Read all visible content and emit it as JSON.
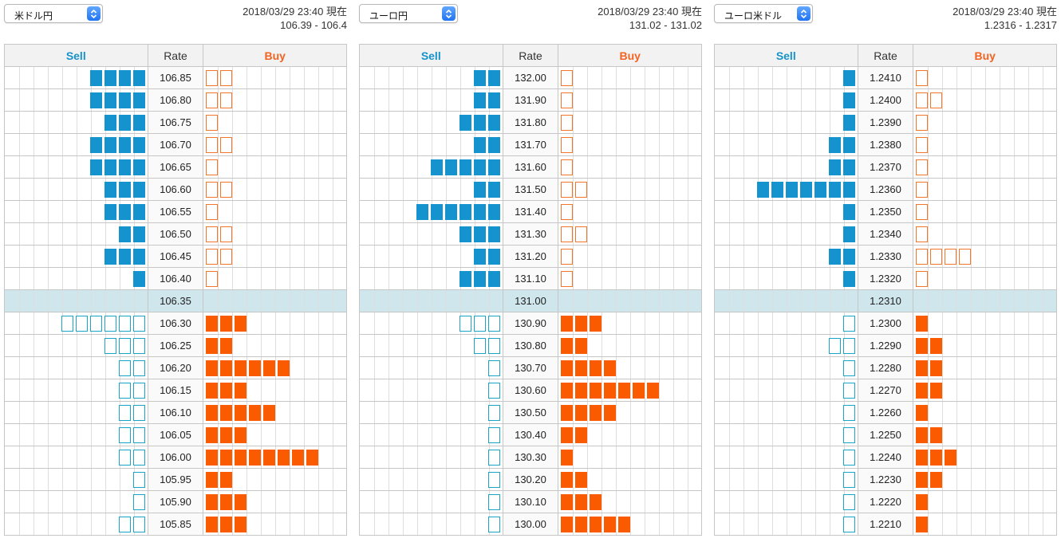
{
  "headers": {
    "sell": "Sell",
    "rate": "Rate",
    "buy": "Buy"
  },
  "colors": {
    "sell_fill": "#1593cf",
    "sell_outline": "#1aa4c8",
    "buy_fill": "#fb5b00",
    "buy_outline": "#f0762a",
    "current_row": "#cfe6ec"
  },
  "icons": {
    "select_arrow": "up-down-chevron-icon"
  },
  "panels": [
    {
      "pair": "米ドル円",
      "timestamp": "2018/03/29 23:40 現在",
      "quote": "106.39 - 106.4",
      "current_rate": "106.35",
      "rows": [
        {
          "rate": "106.85",
          "sell": 4,
          "buy": 2,
          "sell_filled": true,
          "buy_filled": false
        },
        {
          "rate": "106.80",
          "sell": 4,
          "buy": 2,
          "sell_filled": true,
          "buy_filled": false
        },
        {
          "rate": "106.75",
          "sell": 3,
          "buy": 1,
          "sell_filled": true,
          "buy_filled": false
        },
        {
          "rate": "106.70",
          "sell": 4,
          "buy": 2,
          "sell_filled": true,
          "buy_filled": false
        },
        {
          "rate": "106.65",
          "sell": 4,
          "buy": 1,
          "sell_filled": true,
          "buy_filled": false
        },
        {
          "rate": "106.60",
          "sell": 3,
          "buy": 2,
          "sell_filled": true,
          "buy_filled": false
        },
        {
          "rate": "106.55",
          "sell": 3,
          "buy": 1,
          "sell_filled": true,
          "buy_filled": false
        },
        {
          "rate": "106.50",
          "sell": 2,
          "buy": 2,
          "sell_filled": true,
          "buy_filled": false
        },
        {
          "rate": "106.45",
          "sell": 3,
          "buy": 2,
          "sell_filled": true,
          "buy_filled": false
        },
        {
          "rate": "106.40",
          "sell": 1,
          "buy": 1,
          "sell_filled": true,
          "buy_filled": false
        },
        {
          "rate": "106.35",
          "sell": 0,
          "buy": 0,
          "sell_filled": true,
          "buy_filled": false
        },
        {
          "rate": "106.30",
          "sell": 6,
          "buy": 3,
          "sell_filled": false,
          "buy_filled": true
        },
        {
          "rate": "106.25",
          "sell": 3,
          "buy": 2,
          "sell_filled": false,
          "buy_filled": true
        },
        {
          "rate": "106.20",
          "sell": 2,
          "buy": 6,
          "sell_filled": false,
          "buy_filled": true
        },
        {
          "rate": "106.15",
          "sell": 2,
          "buy": 3,
          "sell_filled": false,
          "buy_filled": true
        },
        {
          "rate": "106.10",
          "sell": 2,
          "buy": 5,
          "sell_filled": false,
          "buy_filled": true
        },
        {
          "rate": "106.05",
          "sell": 2,
          "buy": 3,
          "sell_filled": false,
          "buy_filled": true
        },
        {
          "rate": "106.00",
          "sell": 2,
          "buy": 8,
          "sell_filled": false,
          "buy_filled": true
        },
        {
          "rate": "105.95",
          "sell": 1,
          "buy": 2,
          "sell_filled": false,
          "buy_filled": true
        },
        {
          "rate": "105.90",
          "sell": 1,
          "buy": 3,
          "sell_filled": false,
          "buy_filled": true
        },
        {
          "rate": "105.85",
          "sell": 2,
          "buy": 3,
          "sell_filled": false,
          "buy_filled": true
        }
      ]
    },
    {
      "pair": "ユーロ円",
      "timestamp": "2018/03/29 23:40 現在",
      "quote": "131.02 - 131.02",
      "current_rate": "131.00",
      "rows": [
        {
          "rate": "132.00",
          "sell": 2,
          "buy": 1,
          "sell_filled": true,
          "buy_filled": false
        },
        {
          "rate": "131.90",
          "sell": 2,
          "buy": 1,
          "sell_filled": true,
          "buy_filled": false
        },
        {
          "rate": "131.80",
          "sell": 3,
          "buy": 1,
          "sell_filled": true,
          "buy_filled": false
        },
        {
          "rate": "131.70",
          "sell": 2,
          "buy": 1,
          "sell_filled": true,
          "buy_filled": false
        },
        {
          "rate": "131.60",
          "sell": 5,
          "buy": 1,
          "sell_filled": true,
          "buy_filled": false
        },
        {
          "rate": "131.50",
          "sell": 2,
          "buy": 2,
          "sell_filled": true,
          "buy_filled": false
        },
        {
          "rate": "131.40",
          "sell": 6,
          "buy": 1,
          "sell_filled": true,
          "buy_filled": false
        },
        {
          "rate": "131.30",
          "sell": 3,
          "buy": 2,
          "sell_filled": true,
          "buy_filled": false
        },
        {
          "rate": "131.20",
          "sell": 2,
          "buy": 1,
          "sell_filled": true,
          "buy_filled": false
        },
        {
          "rate": "131.10",
          "sell": 3,
          "buy": 1,
          "sell_filled": true,
          "buy_filled": false
        },
        {
          "rate": "131.00",
          "sell": 0,
          "buy": 0,
          "sell_filled": true,
          "buy_filled": false
        },
        {
          "rate": "130.90",
          "sell": 3,
          "buy": 3,
          "sell_filled": false,
          "buy_filled": true
        },
        {
          "rate": "130.80",
          "sell": 2,
          "buy": 2,
          "sell_filled": false,
          "buy_filled": true
        },
        {
          "rate": "130.70",
          "sell": 1,
          "buy": 4,
          "sell_filled": false,
          "buy_filled": true
        },
        {
          "rate": "130.60",
          "sell": 1,
          "buy": 7,
          "sell_filled": false,
          "buy_filled": true
        },
        {
          "rate": "130.50",
          "sell": 1,
          "buy": 4,
          "sell_filled": false,
          "buy_filled": true
        },
        {
          "rate": "130.40",
          "sell": 1,
          "buy": 2,
          "sell_filled": false,
          "buy_filled": true
        },
        {
          "rate": "130.30",
          "sell": 1,
          "buy": 1,
          "sell_filled": false,
          "buy_filled": true
        },
        {
          "rate": "130.20",
          "sell": 1,
          "buy": 2,
          "sell_filled": false,
          "buy_filled": true
        },
        {
          "rate": "130.10",
          "sell": 1,
          "buy": 3,
          "sell_filled": false,
          "buy_filled": true
        },
        {
          "rate": "130.00",
          "sell": 1,
          "buy": 5,
          "sell_filled": false,
          "buy_filled": true
        }
      ]
    },
    {
      "pair": "ユーロ米ドル",
      "timestamp": "2018/03/29 23:40 現在",
      "quote": "1.2316 - 1.2317",
      "current_rate": "1.2310",
      "rows": [
        {
          "rate": "1.2410",
          "sell": 1,
          "buy": 1,
          "sell_filled": true,
          "buy_filled": false
        },
        {
          "rate": "1.2400",
          "sell": 1,
          "buy": 2,
          "sell_filled": true,
          "buy_filled": false
        },
        {
          "rate": "1.2390",
          "sell": 1,
          "buy": 1,
          "sell_filled": true,
          "buy_filled": false
        },
        {
          "rate": "1.2380",
          "sell": 2,
          "buy": 1,
          "sell_filled": true,
          "buy_filled": false
        },
        {
          "rate": "1.2370",
          "sell": 2,
          "buy": 1,
          "sell_filled": true,
          "buy_filled": false
        },
        {
          "rate": "1.2360",
          "sell": 7,
          "buy": 1,
          "sell_filled": true,
          "buy_filled": false
        },
        {
          "rate": "1.2350",
          "sell": 1,
          "buy": 1,
          "sell_filled": true,
          "buy_filled": false
        },
        {
          "rate": "1.2340",
          "sell": 1,
          "buy": 1,
          "sell_filled": true,
          "buy_filled": false
        },
        {
          "rate": "1.2330",
          "sell": 2,
          "buy": 4,
          "sell_filled": true,
          "buy_filled": false
        },
        {
          "rate": "1.2320",
          "sell": 1,
          "buy": 1,
          "sell_filled": true,
          "buy_filled": false
        },
        {
          "rate": "1.2310",
          "sell": 0,
          "buy": 0,
          "sell_filled": true,
          "buy_filled": false
        },
        {
          "rate": "1.2300",
          "sell": 1,
          "buy": 1,
          "sell_filled": false,
          "buy_filled": true
        },
        {
          "rate": "1.2290",
          "sell": 2,
          "buy": 2,
          "sell_filled": false,
          "buy_filled": true
        },
        {
          "rate": "1.2280",
          "sell": 1,
          "buy": 2,
          "sell_filled": false,
          "buy_filled": true
        },
        {
          "rate": "1.2270",
          "sell": 1,
          "buy": 2,
          "sell_filled": false,
          "buy_filled": true
        },
        {
          "rate": "1.2260",
          "sell": 1,
          "buy": 1,
          "sell_filled": false,
          "buy_filled": true
        },
        {
          "rate": "1.2250",
          "sell": 1,
          "buy": 2,
          "sell_filled": false,
          "buy_filled": true
        },
        {
          "rate": "1.2240",
          "sell": 1,
          "buy": 3,
          "sell_filled": false,
          "buy_filled": true
        },
        {
          "rate": "1.2230",
          "sell": 1,
          "buy": 2,
          "sell_filled": false,
          "buy_filled": true
        },
        {
          "rate": "1.2220",
          "sell": 1,
          "buy": 1,
          "sell_filled": false,
          "buy_filled": true
        },
        {
          "rate": "1.2210",
          "sell": 1,
          "buy": 1,
          "sell_filled": false,
          "buy_filled": true
        }
      ]
    }
  ]
}
